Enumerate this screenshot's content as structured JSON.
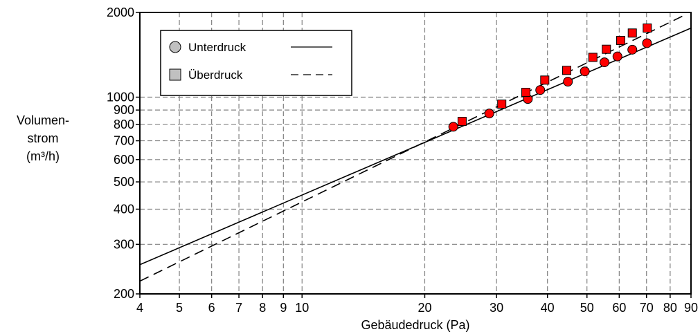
{
  "chart_data": {
    "type": "scatter",
    "xscale": "log",
    "yscale": "log",
    "xlim": [
      4,
      90
    ],
    "ylim": [
      200,
      2000
    ],
    "xlabel": "Gebäudedruck (Pa)",
    "ylabel_lines": [
      "Volumen-",
      "strom",
      "(m³/h)"
    ],
    "xticks": [
      4,
      5,
      6,
      7,
      8,
      9,
      10,
      20,
      30,
      40,
      50,
      60,
      70,
      80,
      90
    ],
    "xtick_labels": [
      "4",
      "5",
      "6",
      "7",
      "8",
      "9",
      "10",
      "20",
      "30",
      "40",
      "50",
      "60",
      "70",
      "80",
      "90"
    ],
    "yticks": [
      200,
      300,
      400,
      500,
      600,
      700,
      800,
      900,
      1000,
      2000
    ],
    "ytick_labels": [
      "200",
      "300",
      "400",
      "500",
      "600",
      "700",
      "800",
      "900",
      "1000",
      "2000"
    ],
    "grid": true,
    "legend_position": "top-left",
    "point_color": "#ff0000",
    "series": [
      {
        "name": "Unterdruck",
        "marker": "circle",
        "line_style": "solid",
        "fit_line": {
          "x": [
            4,
            90
          ],
          "y": [
            254,
            1760
          ]
        },
        "x": [
          23.5,
          28.8,
          35.8,
          38.4,
          44.9,
          49.4,
          55.2,
          59.4,
          64.6,
          70.2
        ],
        "y": [
          785,
          875,
          985,
          1060,
          1135,
          1235,
          1330,
          1395,
          1475,
          1555
        ]
      },
      {
        "name": "Überdruck",
        "marker": "square",
        "line_style": "dashed",
        "fit_line": {
          "x": [
            4,
            87
          ],
          "y": [
            222,
            1960
          ]
        },
        "x": [
          24.7,
          30.9,
          35.4,
          39.4,
          44.6,
          51.7,
          55.8,
          60.5,
          64.6,
          70.3
        ],
        "y": [
          820,
          945,
          1040,
          1150,
          1245,
          1385,
          1480,
          1590,
          1690,
          1760
        ]
      }
    ]
  }
}
